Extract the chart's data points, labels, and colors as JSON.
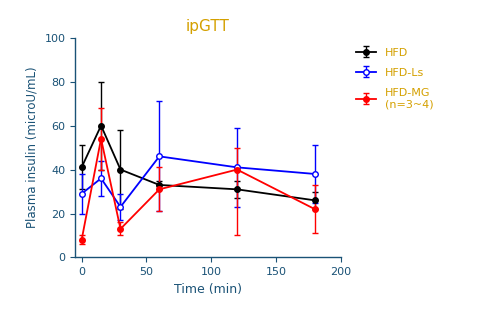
{
  "title": "ipGTT",
  "xlabel": "Time (min)",
  "ylabel": "Plasma insulin (microU/mL)",
  "xlim": [
    -5,
    200
  ],
  "ylim": [
    0,
    100
  ],
  "xticks": [
    0,
    50,
    100,
    150,
    200
  ],
  "yticks": [
    0,
    20,
    40,
    60,
    80,
    100
  ],
  "legend_labels": [
    "HFD",
    "HFD-Ls",
    "HFD-MG\n(n=3~4)"
  ],
  "HFD": {
    "x": [
      0,
      15,
      30,
      60,
      120,
      180
    ],
    "y": [
      41,
      60,
      40,
      33,
      31,
      26
    ],
    "yerr_lo": [
      10,
      20,
      18,
      2,
      4,
      4
    ],
    "yerr_hi": [
      10,
      20,
      18,
      2,
      4,
      4
    ],
    "color": "#000000",
    "marker": "o",
    "markerfacecolor": "#000000"
  },
  "HFD_Ls": {
    "x": [
      0,
      15,
      30,
      60,
      120,
      180
    ],
    "y": [
      29,
      36,
      23,
      46,
      41,
      38
    ],
    "yerr_lo": [
      9,
      8,
      6,
      25,
      18,
      13
    ],
    "yerr_hi": [
      9,
      8,
      6,
      25,
      18,
      13
    ],
    "color": "#0000ff",
    "marker": "o",
    "markerfacecolor": "#ffffff"
  },
  "HFD_MG": {
    "x": [
      0,
      15,
      30,
      60,
      120,
      180
    ],
    "y": [
      8,
      54,
      13,
      31,
      40,
      22
    ],
    "yerr_lo": [
      2,
      14,
      3,
      10,
      30,
      11
    ],
    "yerr_hi": [
      2,
      14,
      3,
      10,
      10,
      11
    ],
    "color": "#ff0000",
    "marker": "o",
    "markerfacecolor": "#ff0000"
  },
  "background_color": "#ffffff",
  "title_color": "#d4a000",
  "legend_text_color": "#d4a000",
  "axis_label_color": "#1a5276"
}
